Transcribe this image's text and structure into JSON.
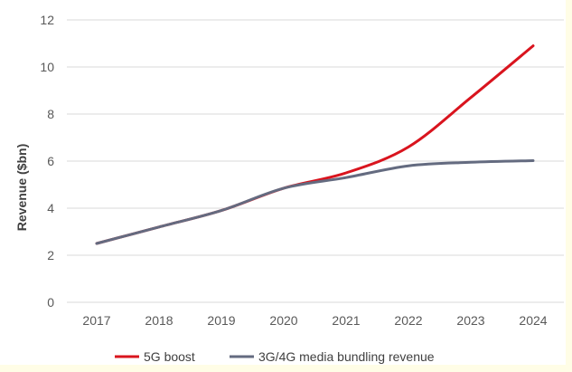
{
  "chart_data": {
    "type": "line",
    "title": "",
    "xlabel": "",
    "ylabel": "Revenue ($bn)",
    "categories": [
      "2017",
      "2018",
      "2019",
      "2020",
      "2021",
      "2022",
      "2023",
      "2024"
    ],
    "ylim": [
      0,
      12
    ],
    "yticks": [
      0,
      2,
      4,
      6,
      8,
      10,
      12
    ],
    "grid": "horizontal",
    "legend_position": "bottom",
    "series": [
      {
        "name": "5G boost",
        "color": "#d9141e",
        "values": [
          2.5,
          3.2,
          3.9,
          4.85,
          5.5,
          6.6,
          8.7,
          10.9
        ]
      },
      {
        "name": "3G/4G media bundling revenue",
        "color": "#646b80",
        "values": [
          2.5,
          3.2,
          3.9,
          4.85,
          5.3,
          5.8,
          5.95,
          6.02
        ]
      }
    ]
  }
}
